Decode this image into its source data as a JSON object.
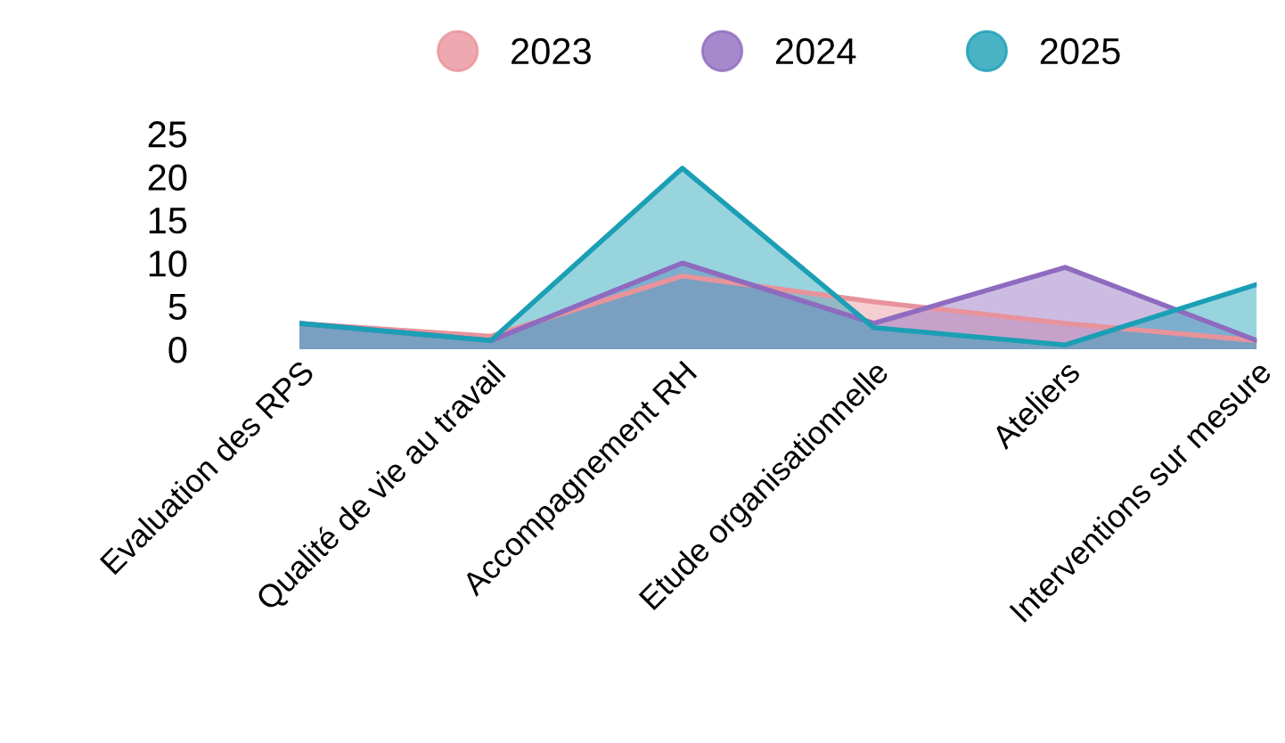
{
  "chart_data": {
    "type": "area",
    "categories": [
      "Evaluation des RPS",
      "Qualité de vie au travail",
      "Accompagnement RH",
      "Etude organisationnelle",
      "Ateliers",
      "Interventions sur mesure"
    ],
    "series": [
      {
        "name": "2023",
        "color": "#e8939b",
        "values": [
          3,
          1.5,
          8.5,
          5.5,
          3,
          1
        ]
      },
      {
        "name": "2024",
        "color": "#8e6bbf",
        "values": [
          3,
          1,
          10,
          3,
          9.5,
          1
        ]
      },
      {
        "name": "2025",
        "color": "#1b9fb5",
        "values": [
          3,
          1,
          21,
          2.5,
          0.5,
          7.5
        ]
      }
    ],
    "ylim": [
      0,
      25
    ],
    "yticks": [
      0,
      5,
      10,
      15,
      20,
      25
    ],
    "grid": false,
    "legend": "top"
  }
}
